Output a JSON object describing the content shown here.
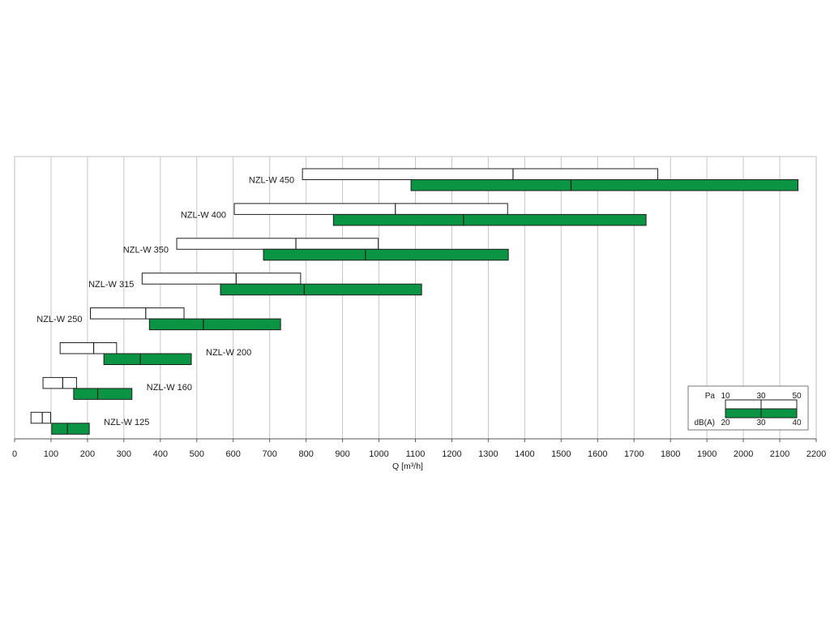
{
  "chart_data": {
    "type": "bar",
    "subtype": "floating-range",
    "xlabel": "Q [m³/h]",
    "xlim": [
      0,
      2200
    ],
    "xticks": [
      0,
      100,
      200,
      300,
      400,
      500,
      600,
      700,
      800,
      900,
      1000,
      1100,
      1200,
      1300,
      1400,
      1500,
      1600,
      1700,
      1800,
      1900,
      2000,
      2100,
      2200
    ],
    "grid": true,
    "legend": {
      "placement": "bottom-right",
      "pa_label": "Pa",
      "pa_ticks": [
        "10",
        "30",
        "50"
      ],
      "db_label": "dB(A)",
      "db_ticks": [
        "20",
        "30",
        "40"
      ]
    },
    "colors": {
      "pa_fill": "#ffffff",
      "db_fill": "#0a9444",
      "grid": "#c6c6c6",
      "frame": "#bfbfbf",
      "outline": "#1f1f1f"
    },
    "series": [
      {
        "name": "NZL-W 450",
        "label_side": "left",
        "pa": [
          790,
          1368,
          1765
        ],
        "db": [
          1088,
          1527,
          2150
        ]
      },
      {
        "name": "NZL-W 400",
        "label_side": "left",
        "pa": [
          603,
          1045,
          1353
        ],
        "db": [
          875,
          1232,
          1733
        ]
      },
      {
        "name": "NZL-W 350",
        "label_side": "left",
        "pa": [
          445,
          772,
          998
        ],
        "db": [
          683,
          963,
          1355
        ]
      },
      {
        "name": "NZL-W 315",
        "label_side": "left",
        "pa": [
          350,
          608,
          785
        ],
        "db": [
          565,
          795,
          1117
        ]
      },
      {
        "name": "NZL-W 250",
        "label_side": "left",
        "pa": [
          208,
          360,
          465
        ],
        "db": [
          370,
          518,
          730
        ]
      },
      {
        "name": "NZL-W 200",
        "label_side": "right",
        "pa": [
          125,
          217,
          280
        ],
        "db": [
          245,
          345,
          485
        ]
      },
      {
        "name": "NZL-W 160",
        "label_side": "right",
        "pa": [
          78,
          132,
          170
        ],
        "db": [
          162,
          228,
          322
        ]
      },
      {
        "name": "NZL-W 125",
        "label_side": "right",
        "pa": [
          45,
          76,
          99
        ],
        "db": [
          102,
          145,
          205
        ]
      }
    ]
  }
}
